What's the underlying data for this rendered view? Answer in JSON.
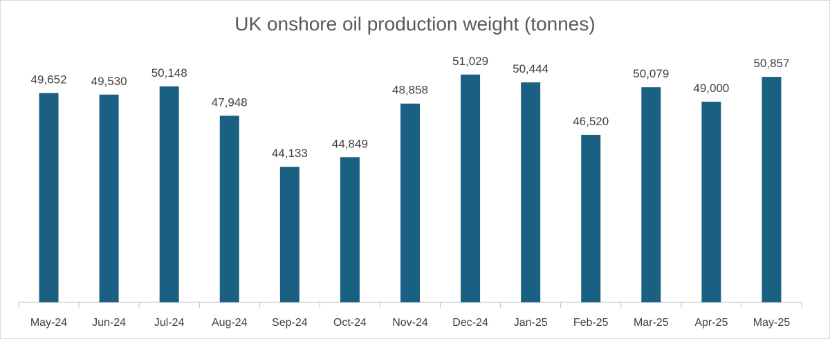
{
  "chart_data": {
    "type": "bar",
    "title": "UK onshore oil production weight (tonnes)",
    "xlabel": "",
    "ylabel": "",
    "categories": [
      "May-24",
      "Jun-24",
      "Jul-24",
      "Aug-24",
      "Sep-24",
      "Oct-24",
      "Nov-24",
      "Dec-24",
      "Jan-25",
      "Feb-25",
      "Mar-25",
      "Apr-25",
      "May-25"
    ],
    "values": [
      49652,
      49530,
      50148,
      47948,
      44133,
      44849,
      48858,
      51029,
      50444,
      46520,
      50079,
      49000,
      50857
    ],
    "data_labels": [
      "49,652",
      "49,530",
      "50,148",
      "47,948",
      "44,133",
      "44,849",
      "48,858",
      "51,029",
      "50,444",
      "46,520",
      "50,079",
      "49,000",
      "50,857"
    ],
    "ylim": [
      34000,
      52000
    ],
    "grid": false,
    "legend": "none",
    "bar_color": "#1a6082",
    "axis_color": "#bfbfbf"
  }
}
